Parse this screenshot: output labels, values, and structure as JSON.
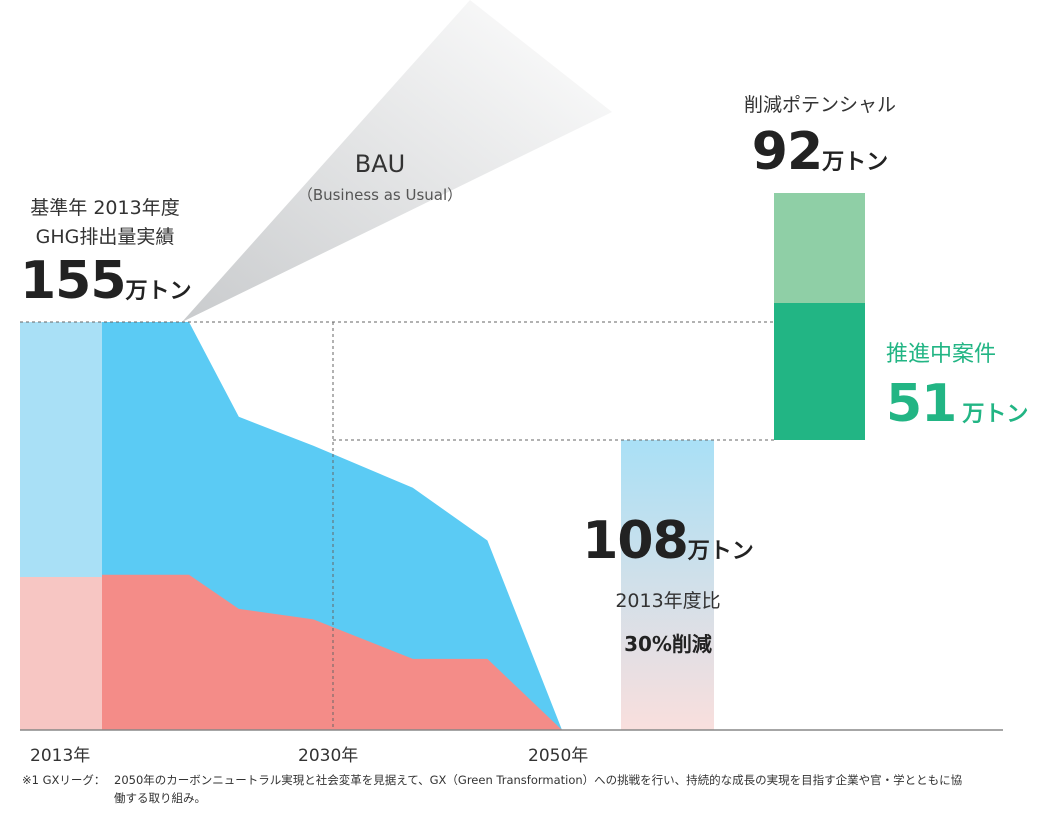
{
  "chart_data": {
    "type": "area",
    "x_ticks": [
      "2013年",
      "2030年",
      "2050年"
    ],
    "xlim": [
      2013,
      2050
    ],
    "ylim": [
      0,
      155
    ],
    "series": [
      {
        "x": [
          2013,
          2016,
          2017.5,
          2020,
          2024,
          2030,
          2038,
          2044,
          2050
        ],
        "values": [
          59,
          59,
          59,
          59,
          46,
          42,
          27,
          27,
          0
        ]
      },
      {
        "x": [
          2013,
          2016,
          2017.5,
          2020,
          2024,
          2030,
          2038,
          2044,
          2050
        ],
        "values": [
          155,
          155,
          155,
          155,
          119,
          108,
          92,
          72,
          0
        ]
      }
    ],
    "bau": {
      "title": "BAU",
      "subtitle": "（Business as Usual）"
    },
    "base": {
      "line1": "基準年 2013年度",
      "line2": "GHG排出量実績",
      "value": 155,
      "unit": "万トン"
    },
    "target": {
      "value": 108,
      "unit": "万トン",
      "ratio_label": "2013年度比",
      "reduction_label": "30%削減"
    },
    "potential": {
      "label": "削減ポテンシャル",
      "value": 92,
      "unit": "万トン"
    },
    "in_progress": {
      "label": "推進中案件",
      "value": 51,
      "unit": "万トン"
    }
  },
  "footnote": {
    "mark": "※1 GXリーグ：",
    "text1": "2050年のカーボンニュートラル実現と社会変革を見据えて、GX（Green Transformation）への挑戦を行い、持続的な成長の実現を目指す企業や官・学とともに協",
    "text2": "働する取り組み。"
  },
  "colors": {
    "blue": "#5bcbf4",
    "blue_light": "#a9e0f6",
    "red": "#f48c88",
    "red_light": "#f7c6c3",
    "green_dark": "#22b584",
    "green_light": "#8fcfa6",
    "axis": "#888888",
    "dash": "#666666"
  }
}
